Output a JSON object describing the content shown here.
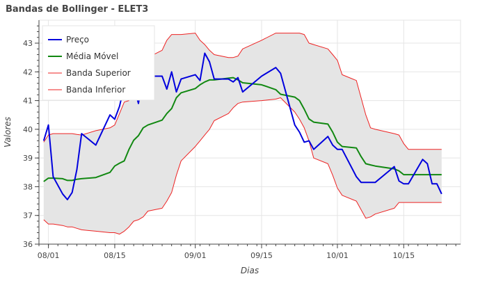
{
  "chart_data": {
    "type": "line",
    "title": "Bandas de Bollinger - ELET3",
    "xlabel": "Dias",
    "ylabel": "Valores",
    "xlim": [
      "2023-07-30",
      "2023-10-27"
    ],
    "ylim": [
      36,
      43.8
    ],
    "x_ticks": [
      {
        "date": "2023-08-01",
        "label": "08/01"
      },
      {
        "date": "2023-08-15",
        "label": "08/15"
      },
      {
        "date": "2023-09-01",
        "label": "09/01"
      },
      {
        "date": "2023-09-15",
        "label": "09/15"
      },
      {
        "date": "2023-10-01",
        "label": "10/01"
      },
      {
        "date": "2023-10-15",
        "label": "10/15"
      }
    ],
    "y_ticks": [
      36,
      37,
      38,
      39,
      40,
      41,
      42,
      43
    ],
    "grid": true,
    "legend_position": "top-left",
    "band_fill_color": "#e5e5e5",
    "x": [
      "2023-07-31",
      "2023-08-01",
      "2023-08-02",
      "2023-08-04",
      "2023-08-05",
      "2023-08-06",
      "2023-08-07",
      "2023-08-08",
      "2023-08-11",
      "2023-08-14",
      "2023-08-15",
      "2023-08-16",
      "2023-08-17",
      "2023-08-18",
      "2023-08-19",
      "2023-08-20",
      "2023-08-21",
      "2023-08-22",
      "2023-08-25",
      "2023-08-26",
      "2023-08-27",
      "2023-08-28",
      "2023-08-29",
      "2023-09-01",
      "2023-09-02",
      "2023-09-03",
      "2023-09-04",
      "2023-09-05",
      "2023-09-08",
      "2023-09-09",
      "2023-09-10",
      "2023-09-11",
      "2023-09-15",
      "2023-09-18",
      "2023-09-19",
      "2023-09-22",
      "2023-09-23",
      "2023-09-24",
      "2023-09-25",
      "2023-09-26",
      "2023-09-29",
      "2023-09-30",
      "2023-10-01",
      "2023-10-02",
      "2023-10-05",
      "2023-10-06",
      "2023-10-07",
      "2023-10-08",
      "2023-10-09",
      "2023-10-13",
      "2023-10-14",
      "2023-10-15",
      "2023-10-16",
      "2023-10-19",
      "2023-10-20",
      "2023-10-21",
      "2023-10-22",
      "2023-10-23"
    ],
    "series": [
      {
        "name": "Preço",
        "color": "#0000dd",
        "width": 2,
        "values": [
          39.6,
          40.15,
          38.35,
          37.75,
          37.55,
          37.8,
          38.6,
          39.85,
          39.45,
          40.5,
          40.35,
          40.8,
          41.5,
          41.4,
          41.5,
          40.9,
          41.85,
          41.85,
          41.85,
          41.4,
          42.0,
          41.3,
          41.75,
          41.9,
          41.7,
          42.65,
          42.35,
          41.75,
          41.75,
          41.65,
          41.8,
          41.3,
          41.85,
          42.15,
          41.95,
          40.15,
          39.9,
          39.55,
          39.6,
          39.3,
          39.75,
          39.45,
          39.3,
          39.3,
          38.35,
          38.15,
          38.15,
          38.15,
          38.15,
          38.7,
          38.2,
          38.1,
          38.1,
          38.95,
          38.8,
          38.1,
          38.1,
          37.75
        ]
      },
      {
        "name": "Média Móvel",
        "color": "#118811",
        "width": 2,
        "values": [
          38.18,
          38.3,
          38.3,
          38.28,
          38.22,
          38.22,
          38.26,
          38.28,
          38.32,
          38.5,
          38.72,
          38.82,
          38.9,
          39.3,
          39.62,
          39.78,
          40.05,
          40.15,
          40.32,
          40.55,
          40.72,
          41.1,
          41.27,
          41.42,
          41.55,
          41.65,
          41.72,
          41.72,
          41.78,
          41.8,
          41.72,
          41.62,
          41.55,
          41.38,
          41.22,
          41.12,
          41.0,
          40.7,
          40.36,
          40.25,
          40.18,
          39.9,
          39.55,
          39.4,
          39.35,
          39.05,
          38.8,
          38.76,
          38.72,
          38.62,
          38.55,
          38.42,
          38.42,
          38.42,
          38.42,
          38.42,
          38.42,
          38.42
        ]
      },
      {
        "name": "Banda Superior",
        "color": "#ee2222",
        "width": 1,
        "values": [
          39.55,
          39.8,
          39.85,
          39.85,
          39.85,
          39.85,
          39.82,
          39.8,
          39.95,
          40.05,
          40.15,
          40.55,
          40.95,
          41.0,
          41.4,
          41.95,
          42.35,
          42.5,
          42.75,
          43.1,
          43.3,
          43.3,
          43.3,
          43.35,
          43.1,
          42.95,
          42.75,
          42.6,
          42.5,
          42.5,
          42.55,
          42.8,
          43.1,
          43.35,
          43.35,
          43.35,
          43.35,
          43.3,
          43.0,
          42.95,
          42.8,
          42.6,
          42.4,
          41.9,
          41.7,
          41.1,
          40.5,
          40.05,
          40.0,
          39.85,
          39.8,
          39.5,
          39.3,
          39.3,
          39.3,
          39.3,
          39.3,
          39.3
        ]
      },
      {
        "name": "Banda Inferior",
        "color": "#ee2222",
        "width": 1,
        "values": [
          36.85,
          36.7,
          36.7,
          36.65,
          36.6,
          36.6,
          36.55,
          36.5,
          36.45,
          36.4,
          36.4,
          36.35,
          36.45,
          36.6,
          36.8,
          36.85,
          36.95,
          37.15,
          37.25,
          37.5,
          37.8,
          38.4,
          38.9,
          39.4,
          39.6,
          39.8,
          40.0,
          40.3,
          40.55,
          40.75,
          40.9,
          40.95,
          41.0,
          41.05,
          41.1,
          40.6,
          40.35,
          40.05,
          39.6,
          39.0,
          38.8,
          38.4,
          37.95,
          37.7,
          37.5,
          37.2,
          36.9,
          36.95,
          37.05,
          37.25,
          37.45,
          37.45,
          37.45,
          37.45,
          37.45,
          37.45,
          37.45,
          37.45
        ]
      }
    ]
  }
}
